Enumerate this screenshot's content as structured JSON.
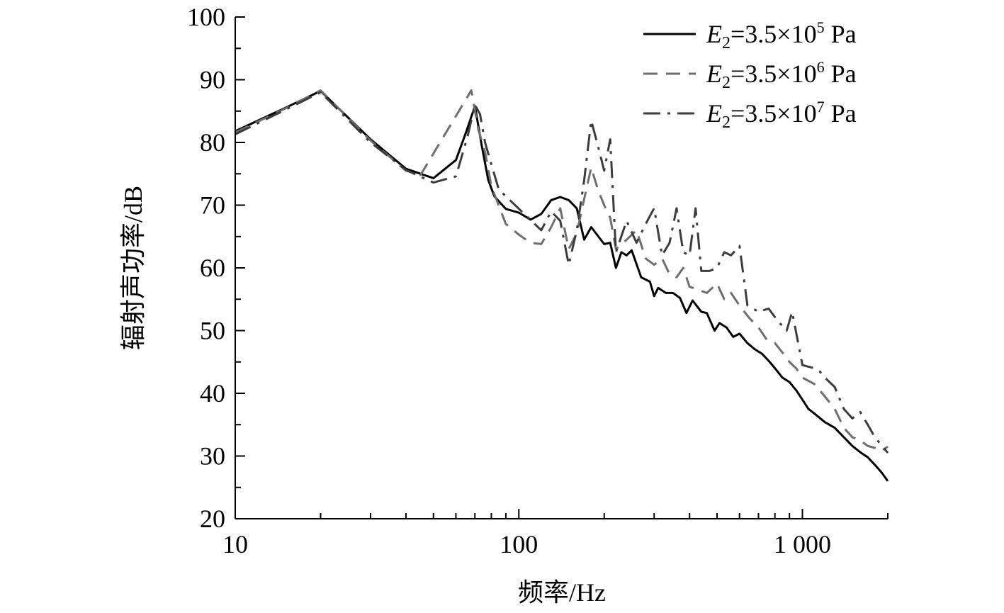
{
  "chart_data": {
    "type": "line",
    "xlabel": "频率/Hz",
    "ylabel": "辐射声功率/dB",
    "xscale": "log",
    "xlim": [
      10,
      2000
    ],
    "ylim": [
      20,
      100
    ],
    "x_ticks": [
      10,
      100,
      1000
    ],
    "x_tick_labels": [
      "10",
      "100",
      "1 000"
    ],
    "y_ticks": [
      20,
      30,
      40,
      50,
      60,
      70,
      80,
      90,
      100
    ],
    "y_tick_labels": [
      "20",
      "30",
      "40",
      "50",
      "60",
      "70",
      "80",
      "90",
      "100"
    ],
    "legend_position": "top-right",
    "grid": false,
    "series": [
      {
        "name": "E2=3.5×10^5 Pa",
        "legend": {
          "symbol": "E",
          "subscript": "2",
          "mid": "=3.5×10",
          "superscript": "5",
          "unit": " Pa"
        },
        "color": "#000000",
        "dash": "solid",
        "points": [
          [
            10,
            81.8
          ],
          [
            15,
            85.5
          ],
          [
            20,
            88.2
          ],
          [
            30,
            80.5
          ],
          [
            40,
            75.8
          ],
          [
            50,
            74.3
          ],
          [
            60,
            77.2
          ],
          [
            65,
            81.5
          ],
          [
            70,
            85.8
          ],
          [
            74,
            79.5
          ],
          [
            78,
            74.0
          ],
          [
            82,
            71.4
          ],
          [
            90,
            69.4
          ],
          [
            100,
            68.8
          ],
          [
            110,
            67.7
          ],
          [
            120,
            68.6
          ],
          [
            130,
            70.8
          ],
          [
            140,
            71.3
          ],
          [
            150,
            70.8
          ],
          [
            160,
            69.5
          ],
          [
            170,
            64.5
          ],
          [
            180,
            66.5
          ],
          [
            200,
            63.8
          ],
          [
            210,
            64.0
          ],
          [
            220,
            60.0
          ],
          [
            230,
            62.5
          ],
          [
            240,
            62.0
          ],
          [
            250,
            62.8
          ],
          [
            270,
            58.5
          ],
          [
            290,
            57.8
          ],
          [
            300,
            55.5
          ],
          [
            310,
            56.8
          ],
          [
            330,
            56.0
          ],
          [
            350,
            56.0
          ],
          [
            370,
            55.2
          ],
          [
            390,
            52.8
          ],
          [
            410,
            54.8
          ],
          [
            440,
            53.0
          ],
          [
            460,
            52.8
          ],
          [
            490,
            50.0
          ],
          [
            510,
            51.2
          ],
          [
            540,
            50.5
          ],
          [
            570,
            49.0
          ],
          [
            600,
            49.5
          ],
          [
            640,
            48.0
          ],
          [
            680,
            47.0
          ],
          [
            720,
            46.3
          ],
          [
            760,
            45.2
          ],
          [
            800,
            44.0
          ],
          [
            850,
            42.5
          ],
          [
            900,
            41.8
          ],
          [
            950,
            40.5
          ],
          [
            1000,
            39.0
          ],
          [
            1050,
            37.5
          ],
          [
            1100,
            36.8
          ],
          [
            1200,
            35.4
          ],
          [
            1300,
            34.5
          ],
          [
            1400,
            33.0
          ],
          [
            1500,
            31.6
          ],
          [
            1600,
            30.6
          ],
          [
            1700,
            29.8
          ],
          [
            1800,
            28.6
          ],
          [
            1900,
            27.4
          ],
          [
            2000,
            26.0
          ]
        ]
      },
      {
        "name": "E2=3.5×10^6 Pa",
        "legend": {
          "symbol": "E",
          "subscript": "2",
          "mid": "=3.5×10",
          "superscript": "6",
          "unit": " Pa"
        },
        "color": "#6e6e6e",
        "dash": "dashed",
        "points": [
          [
            10,
            81.6
          ],
          [
            15,
            85.4
          ],
          [
            20,
            88.3
          ],
          [
            30,
            80.3
          ],
          [
            40,
            75.5
          ],
          [
            45,
            74.8
          ],
          [
            68,
            88.3
          ],
          [
            72,
            82.0
          ],
          [
            76,
            78.5
          ],
          [
            80,
            73.0
          ],
          [
            90,
            67.0
          ],
          [
            100,
            65.3
          ],
          [
            110,
            64.0
          ],
          [
            120,
            63.8
          ],
          [
            130,
            66.5
          ],
          [
            140,
            69.5
          ],
          [
            150,
            63.0
          ],
          [
            160,
            65.5
          ],
          [
            170,
            71.0
          ],
          [
            180,
            76.0
          ],
          [
            190,
            72.5
          ],
          [
            200,
            70.0
          ],
          [
            210,
            68.0
          ],
          [
            220,
            63.0
          ],
          [
            240,
            64.5
          ],
          [
            260,
            66.0
          ],
          [
            280,
            61.5
          ],
          [
            300,
            60.5
          ],
          [
            320,
            61.5
          ],
          [
            340,
            59.0
          ],
          [
            360,
            58.5
          ],
          [
            380,
            60.0
          ],
          [
            400,
            57.0
          ],
          [
            430,
            56.5
          ],
          [
            460,
            56.0
          ],
          [
            500,
            57.5
          ],
          [
            530,
            55.0
          ],
          [
            560,
            56.0
          ],
          [
            600,
            54.0
          ],
          [
            650,
            52.0
          ],
          [
            700,
            50.5
          ],
          [
            750,
            48.5
          ],
          [
            800,
            48.0
          ],
          [
            850,
            46.5
          ],
          [
            900,
            45.0
          ],
          [
            950,
            44.0
          ],
          [
            1000,
            42.5
          ],
          [
            1100,
            41.5
          ],
          [
            1200,
            39.5
          ],
          [
            1300,
            37.5
          ],
          [
            1400,
            34.5
          ],
          [
            1500,
            33.0
          ],
          [
            1600,
            32.5
          ],
          [
            1700,
            31.6
          ],
          [
            1800,
            31.3
          ],
          [
            1900,
            30.8
          ],
          [
            2000,
            31.5
          ]
        ]
      },
      {
        "name": "E2=3.5×10^7 Pa",
        "legend": {
          "symbol": "E",
          "subscript": "2",
          "mid": "=3.5×10",
          "superscript": "7",
          "unit": " Pa"
        },
        "color": "#3c3c3c",
        "dash": "dashdot",
        "points": [
          [
            10,
            81.3
          ],
          [
            15,
            85.2
          ],
          [
            20,
            88.0
          ],
          [
            30,
            80.0
          ],
          [
            40,
            75.6
          ],
          [
            50,
            73.6
          ],
          [
            60,
            74.6
          ],
          [
            66,
            81.0
          ],
          [
            70,
            86.0
          ],
          [
            73,
            84.5
          ],
          [
            76,
            80.0
          ],
          [
            80,
            76.5
          ],
          [
            85,
            72.5
          ],
          [
            120,
            66.0
          ],
          [
            130,
            69.0
          ],
          [
            140,
            67.5
          ],
          [
            150,
            60.5
          ],
          [
            160,
            66.0
          ],
          [
            170,
            74.0
          ],
          [
            180,
            83.5
          ],
          [
            190,
            79.5
          ],
          [
            200,
            75.5
          ],
          [
            210,
            80.5
          ],
          [
            220,
            62.5
          ],
          [
            240,
            67.5
          ],
          [
            260,
            64.0
          ],
          [
            280,
            67.0
          ],
          [
            300,
            69.5
          ],
          [
            320,
            62.0
          ],
          [
            340,
            64.0
          ],
          [
            360,
            69.5
          ],
          [
            380,
            62.5
          ],
          [
            400,
            62.0
          ],
          [
            420,
            69.5
          ],
          [
            440,
            59.5
          ],
          [
            470,
            59.5
          ],
          [
            500,
            60.0
          ],
          [
            530,
            62.5
          ],
          [
            560,
            62.0
          ],
          [
            600,
            63.5
          ],
          [
            640,
            54.0
          ],
          [
            700,
            53.0
          ],
          [
            760,
            53.5
          ],
          [
            820,
            51.5
          ],
          [
            880,
            50.0
          ],
          [
            920,
            53.0
          ],
          [
            1000,
            44.5
          ],
          [
            1100,
            44.0
          ],
          [
            1150,
            43.5
          ],
          [
            1200,
            42.5
          ],
          [
            1300,
            41.0
          ],
          [
            1400,
            37.5
          ],
          [
            1500,
            36.0
          ],
          [
            1600,
            37.0
          ],
          [
            1700,
            35.0
          ],
          [
            1800,
            33.0
          ],
          [
            2000,
            30.5
          ]
        ]
      }
    ]
  }
}
